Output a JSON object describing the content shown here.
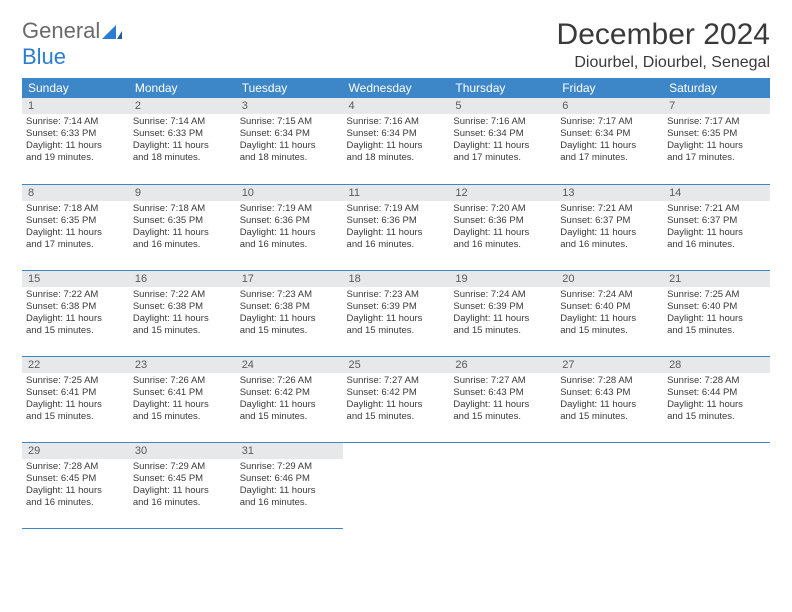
{
  "brand": {
    "word1": "General",
    "word2": "Blue"
  },
  "title": "December 2024",
  "location": "Diourbel, Diourbel, Senegal",
  "header_bg": "#3d87c9",
  "daynum_bg": "#e7e8e9",
  "border_color": "#3d87c9",
  "weekdays": [
    "Sunday",
    "Monday",
    "Tuesday",
    "Wednesday",
    "Thursday",
    "Friday",
    "Saturday"
  ],
  "days": [
    {
      "n": "1",
      "sunrise": "Sunrise: 7:14 AM",
      "sunset": "Sunset: 6:33 PM",
      "day1": "Daylight: 11 hours",
      "day2": "and 19 minutes."
    },
    {
      "n": "2",
      "sunrise": "Sunrise: 7:14 AM",
      "sunset": "Sunset: 6:33 PM",
      "day1": "Daylight: 11 hours",
      "day2": "and 18 minutes."
    },
    {
      "n": "3",
      "sunrise": "Sunrise: 7:15 AM",
      "sunset": "Sunset: 6:34 PM",
      "day1": "Daylight: 11 hours",
      "day2": "and 18 minutes."
    },
    {
      "n": "4",
      "sunrise": "Sunrise: 7:16 AM",
      "sunset": "Sunset: 6:34 PM",
      "day1": "Daylight: 11 hours",
      "day2": "and 18 minutes."
    },
    {
      "n": "5",
      "sunrise": "Sunrise: 7:16 AM",
      "sunset": "Sunset: 6:34 PM",
      "day1": "Daylight: 11 hours",
      "day2": "and 17 minutes."
    },
    {
      "n": "6",
      "sunrise": "Sunrise: 7:17 AM",
      "sunset": "Sunset: 6:34 PM",
      "day1": "Daylight: 11 hours",
      "day2": "and 17 minutes."
    },
    {
      "n": "7",
      "sunrise": "Sunrise: 7:17 AM",
      "sunset": "Sunset: 6:35 PM",
      "day1": "Daylight: 11 hours",
      "day2": "and 17 minutes."
    },
    {
      "n": "8",
      "sunrise": "Sunrise: 7:18 AM",
      "sunset": "Sunset: 6:35 PM",
      "day1": "Daylight: 11 hours",
      "day2": "and 17 minutes."
    },
    {
      "n": "9",
      "sunrise": "Sunrise: 7:18 AM",
      "sunset": "Sunset: 6:35 PM",
      "day1": "Daylight: 11 hours",
      "day2": "and 16 minutes."
    },
    {
      "n": "10",
      "sunrise": "Sunrise: 7:19 AM",
      "sunset": "Sunset: 6:36 PM",
      "day1": "Daylight: 11 hours",
      "day2": "and 16 minutes."
    },
    {
      "n": "11",
      "sunrise": "Sunrise: 7:19 AM",
      "sunset": "Sunset: 6:36 PM",
      "day1": "Daylight: 11 hours",
      "day2": "and 16 minutes."
    },
    {
      "n": "12",
      "sunrise": "Sunrise: 7:20 AM",
      "sunset": "Sunset: 6:36 PM",
      "day1": "Daylight: 11 hours",
      "day2": "and 16 minutes."
    },
    {
      "n": "13",
      "sunrise": "Sunrise: 7:21 AM",
      "sunset": "Sunset: 6:37 PM",
      "day1": "Daylight: 11 hours",
      "day2": "and 16 minutes."
    },
    {
      "n": "14",
      "sunrise": "Sunrise: 7:21 AM",
      "sunset": "Sunset: 6:37 PM",
      "day1": "Daylight: 11 hours",
      "day2": "and 16 minutes."
    },
    {
      "n": "15",
      "sunrise": "Sunrise: 7:22 AM",
      "sunset": "Sunset: 6:38 PM",
      "day1": "Daylight: 11 hours",
      "day2": "and 15 minutes."
    },
    {
      "n": "16",
      "sunrise": "Sunrise: 7:22 AM",
      "sunset": "Sunset: 6:38 PM",
      "day1": "Daylight: 11 hours",
      "day2": "and 15 minutes."
    },
    {
      "n": "17",
      "sunrise": "Sunrise: 7:23 AM",
      "sunset": "Sunset: 6:38 PM",
      "day1": "Daylight: 11 hours",
      "day2": "and 15 minutes."
    },
    {
      "n": "18",
      "sunrise": "Sunrise: 7:23 AM",
      "sunset": "Sunset: 6:39 PM",
      "day1": "Daylight: 11 hours",
      "day2": "and 15 minutes."
    },
    {
      "n": "19",
      "sunrise": "Sunrise: 7:24 AM",
      "sunset": "Sunset: 6:39 PM",
      "day1": "Daylight: 11 hours",
      "day2": "and 15 minutes."
    },
    {
      "n": "20",
      "sunrise": "Sunrise: 7:24 AM",
      "sunset": "Sunset: 6:40 PM",
      "day1": "Daylight: 11 hours",
      "day2": "and 15 minutes."
    },
    {
      "n": "21",
      "sunrise": "Sunrise: 7:25 AM",
      "sunset": "Sunset: 6:40 PM",
      "day1": "Daylight: 11 hours",
      "day2": "and 15 minutes."
    },
    {
      "n": "22",
      "sunrise": "Sunrise: 7:25 AM",
      "sunset": "Sunset: 6:41 PM",
      "day1": "Daylight: 11 hours",
      "day2": "and 15 minutes."
    },
    {
      "n": "23",
      "sunrise": "Sunrise: 7:26 AM",
      "sunset": "Sunset: 6:41 PM",
      "day1": "Daylight: 11 hours",
      "day2": "and 15 minutes."
    },
    {
      "n": "24",
      "sunrise": "Sunrise: 7:26 AM",
      "sunset": "Sunset: 6:42 PM",
      "day1": "Daylight: 11 hours",
      "day2": "and 15 minutes."
    },
    {
      "n": "25",
      "sunrise": "Sunrise: 7:27 AM",
      "sunset": "Sunset: 6:42 PM",
      "day1": "Daylight: 11 hours",
      "day2": "and 15 minutes."
    },
    {
      "n": "26",
      "sunrise": "Sunrise: 7:27 AM",
      "sunset": "Sunset: 6:43 PM",
      "day1": "Daylight: 11 hours",
      "day2": "and 15 minutes."
    },
    {
      "n": "27",
      "sunrise": "Sunrise: 7:28 AM",
      "sunset": "Sunset: 6:43 PM",
      "day1": "Daylight: 11 hours",
      "day2": "and 15 minutes."
    },
    {
      "n": "28",
      "sunrise": "Sunrise: 7:28 AM",
      "sunset": "Sunset: 6:44 PM",
      "day1": "Daylight: 11 hours",
      "day2": "and 15 minutes."
    },
    {
      "n": "29",
      "sunrise": "Sunrise: 7:28 AM",
      "sunset": "Sunset: 6:45 PM",
      "day1": "Daylight: 11 hours",
      "day2": "and 16 minutes."
    },
    {
      "n": "30",
      "sunrise": "Sunrise: 7:29 AM",
      "sunset": "Sunset: 6:45 PM",
      "day1": "Daylight: 11 hours",
      "day2": "and 16 minutes."
    },
    {
      "n": "31",
      "sunrise": "Sunrise: 7:29 AM",
      "sunset": "Sunset: 6:46 PM",
      "day1": "Daylight: 11 hours",
      "day2": "and 16 minutes."
    }
  ]
}
